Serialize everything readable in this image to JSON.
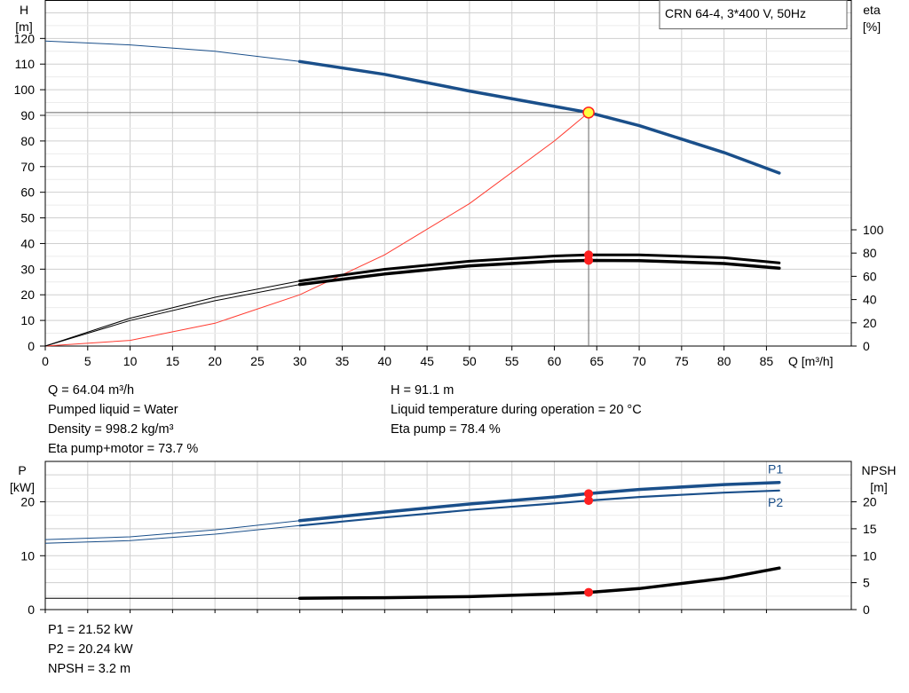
{
  "chart_data": [
    {
      "type": "line",
      "title": "CRN 64-4, 3*400 V, 50Hz",
      "xlabel": "Q [m³/h]",
      "ylabel_left": [
        "H",
        "[m]"
      ],
      "ylabel_right": [
        "eta",
        "[%]"
      ],
      "xlim": [
        0,
        95
      ],
      "ylim_left": [
        0,
        135
      ],
      "ylim_right": [
        0,
        100
      ],
      "x_ticks": [
        0,
        5,
        10,
        15,
        20,
        25,
        30,
        35,
        40,
        45,
        50,
        55,
        60,
        65,
        70,
        75,
        80,
        85
      ],
      "y_ticks_left": [
        0,
        10,
        20,
        30,
        40,
        50,
        60,
        70,
        80,
        90,
        100,
        110,
        120
      ],
      "y_ticks_right": [
        0,
        20,
        40,
        60,
        80,
        100
      ],
      "grid": true,
      "series": [
        {
          "name": "H",
          "color": "#1a4f8a",
          "axis": "left",
          "x": [
            0,
            10,
            20,
            30,
            40,
            50,
            60,
            64.04,
            70,
            80,
            86.5
          ],
          "y": [
            119,
            117.5,
            115,
            111,
            106,
            99.5,
            93.5,
            91.1,
            86,
            75.5,
            67.5
          ]
        },
        {
          "name": "Eta pump",
          "color": "#000000",
          "axis": "right",
          "x": [
            0,
            10,
            20,
            30,
            40,
            50,
            60,
            64.04,
            70,
            80,
            86.5
          ],
          "y": [
            0,
            24,
            42,
            56,
            66,
            73,
            77.5,
            78.4,
            78.5,
            76,
            71.5
          ]
        },
        {
          "name": "Eta pump+motor",
          "color": "#000000",
          "axis": "right",
          "x": [
            0,
            10,
            20,
            30,
            40,
            50,
            60,
            64.04,
            70,
            80,
            86.5
          ],
          "y": [
            0,
            22,
            39,
            53,
            62,
            69,
            73,
            73.7,
            73.5,
            71,
            67
          ]
        },
        {
          "name": "System curve",
          "color": "#ff3b30",
          "axis": "left",
          "x": [
            0,
            10,
            20,
            30,
            40,
            50,
            60,
            64.04
          ],
          "y": [
            0,
            2.2,
            8.9,
            20,
            35.6,
            55.6,
            80,
            91.1
          ]
        }
      ],
      "duty_point": {
        "q": 64.04,
        "h": 91.1,
        "eta_pump": 78.4,
        "eta_total": 73.7
      }
    },
    {
      "type": "line",
      "ylabel_left": [
        "P",
        "[kW]"
      ],
      "ylabel_right": [
        "NPSH",
        "[m]"
      ],
      "xlim": [
        0,
        95
      ],
      "ylim_left": [
        0,
        27.5
      ],
      "ylim_right": [
        0,
        27.5
      ],
      "y_ticks_left": [
        0,
        10,
        20
      ],
      "y_ticks_right": [
        0,
        5,
        10,
        15,
        20
      ],
      "grid": true,
      "series": [
        {
          "name": "P1",
          "color": "#1a4f8a",
          "axis": "left",
          "x": [
            0,
            10,
            20,
            30,
            40,
            50,
            60,
            64.04,
            70,
            80,
            86.5
          ],
          "y": [
            13.0,
            13.5,
            14.8,
            16.5,
            18.1,
            19.6,
            20.9,
            21.52,
            22.3,
            23.2,
            23.6
          ]
        },
        {
          "name": "P2",
          "color": "#1a4f8a",
          "axis": "left",
          "x": [
            0,
            10,
            20,
            30,
            40,
            50,
            60,
            64.04,
            70,
            80,
            86.5
          ],
          "y": [
            12.3,
            12.8,
            14.0,
            15.6,
            17.1,
            18.5,
            19.7,
            20.24,
            20.9,
            21.7,
            22.1
          ]
        },
        {
          "name": "NPSH",
          "color": "#000000",
          "axis": "right",
          "x": [
            0,
            30,
            40,
            50,
            60,
            64.04,
            70,
            80,
            86.5
          ],
          "y": [
            2.1,
            2.1,
            2.2,
            2.4,
            2.9,
            3.2,
            3.9,
            5.8,
            7.7
          ]
        }
      ],
      "duty_point": {
        "q": 64.04,
        "p1": 21.52,
        "p2": 20.24,
        "npsh": 3.2
      }
    }
  ],
  "info_top_left": [
    "Q = 64.04 m³/h",
    "Pumped liquid = Water",
    "Density = 998.2 kg/m³",
    "Eta pump+motor = 73.7 %"
  ],
  "info_top_right": [
    "H = 91.1 m",
    "Liquid temperature during operation = 20 °C",
    "Eta pump = 78.4 %"
  ],
  "info_bottom": [
    "P1 = 21.52 kW",
    "P2 = 20.24 kW",
    "NPSH = 3.2 m"
  ]
}
